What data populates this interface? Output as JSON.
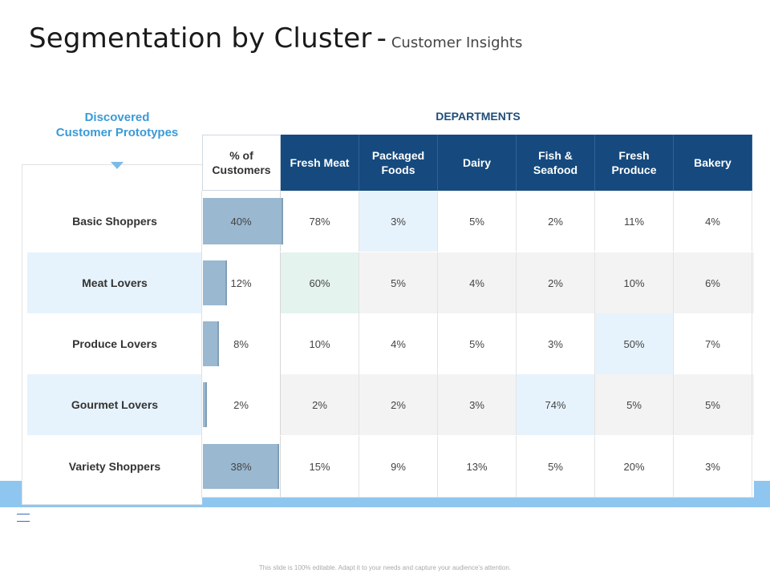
{
  "title": {
    "main": "Segmentation by Cluster",
    "sep": "-",
    "sub": "Customer Insights"
  },
  "left_header": {
    "line1": "Discovered",
    "line2": "Customer Prototypes"
  },
  "departments_label": "DEPARTMENTS",
  "columns": {
    "pct": {
      "line1": "% of",
      "line2": "Customers"
    },
    "depts": [
      {
        "line1": "Fresh Meat",
        "line2": ""
      },
      {
        "line1": "Packaged",
        "line2": "Foods"
      },
      {
        "line1": "Dairy",
        "line2": ""
      },
      {
        "line1": "Fish &",
        "line2": "Seafood"
      },
      {
        "line1": "Fresh",
        "line2": "Produce"
      },
      {
        "line1": "Bakery",
        "line2": ""
      }
    ]
  },
  "rows": [
    {
      "label": "Basic Shoppers",
      "pct": "40%",
      "pct_value": 40,
      "values": [
        "78%",
        "3%",
        "5%",
        "2%",
        "11%",
        "4%"
      ]
    },
    {
      "label": "Meat Lovers",
      "pct": "12%",
      "pct_value": 12,
      "values": [
        "60%",
        "5%",
        "4%",
        "2%",
        "10%",
        "6%"
      ]
    },
    {
      "label": "Produce Lovers",
      "pct": "8%",
      "pct_value": 8,
      "values": [
        "10%",
        "4%",
        "5%",
        "3%",
        "50%",
        "7%"
      ]
    },
    {
      "label": "Gourmet Lovers",
      "pct": "2%",
      "pct_value": 2,
      "values": [
        "2%",
        "2%",
        "3%",
        "74%",
        "5%",
        "5%"
      ]
    },
    {
      "label": "Variety Shoppers",
      "pct": "38%",
      "pct_value": 38,
      "values": [
        "15%",
        "9%",
        "13%",
        "5%",
        "20%",
        "3%"
      ]
    }
  ],
  "highlights": [
    {
      "row": 0,
      "col": 1,
      "color": "blue"
    },
    {
      "row": 1,
      "col": 0,
      "color": "green"
    },
    {
      "row": 2,
      "col": 4,
      "color": "blue"
    },
    {
      "row": 3,
      "col": 3,
      "color": "blue"
    }
  ],
  "colors": {
    "header_bg": "#164a7e",
    "accent": "#3a9ad9",
    "bar": "#9ab8d0",
    "band": "#8fc6f0"
  },
  "footer": "This slide is 100% editable. Adapt it to your needs and capture your audience's attention."
}
